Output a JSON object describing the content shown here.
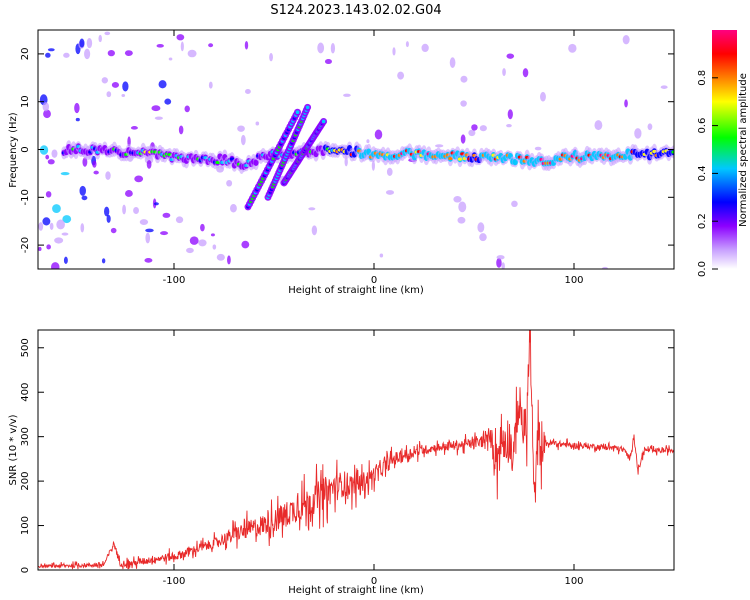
{
  "title": "S124.2023.143.02.02.G04",
  "chart_data": [
    {
      "type": "heatmap",
      "xlabel": "Height of straight line (km)",
      "ylabel": "Frequency (Hz)",
      "xlim": [
        -168,
        150
      ],
      "ylim": [
        -25,
        25
      ],
      "xticks": [
        -100,
        0,
        100
      ],
      "xtick_labels": [
        "-100",
        "0",
        "100"
      ],
      "yticks": [
        -20,
        -10,
        0,
        10,
        20
      ],
      "ytick_labels": [
        "-20",
        "-10",
        "0",
        "10",
        "20"
      ],
      "colorbar": {
        "label": "Normalized spectral amplitude",
        "range": [
          0,
          1
        ],
        "ticks": [
          0.0,
          0.2,
          0.4,
          0.6,
          0.8
        ],
        "tick_labels": [
          "0.0",
          "0.2",
          "0.4",
          "0.6",
          "0.8"
        ],
        "colors": [
          "#ffffff",
          "#c8a0ff",
          "#8c00ff",
          "#0000ff",
          "#00c8ff",
          "#00ff00",
          "#ffff00",
          "#ff8000",
          "#ff0000",
          "#ff0080"
        ]
      },
      "track": [
        {
          "x": -150,
          "f": 0.0,
          "a": 0.35
        },
        {
          "x": -130,
          "f": -0.5,
          "a": 0.4
        },
        {
          "x": -110,
          "f": -1.0,
          "a": 0.45
        },
        {
          "x": -95,
          "f": -2.0,
          "a": 0.4
        },
        {
          "x": -80,
          "f": -2.0,
          "a": 0.4
        },
        {
          "x": -65,
          "f": -3.0,
          "a": 0.35
        },
        {
          "x": -50,
          "f": -1.0,
          "a": 0.35
        },
        {
          "x": -35,
          "f": -0.5,
          "a": 0.4
        },
        {
          "x": -20,
          "f": 0.0,
          "a": 0.55
        },
        {
          "x": -10,
          "f": -0.5,
          "a": 0.7
        },
        {
          "x": 0,
          "f": -1.0,
          "a": 0.75
        },
        {
          "x": 15,
          "f": -1.0,
          "a": 0.8
        },
        {
          "x": 30,
          "f": -1.0,
          "a": 0.75
        },
        {
          "x": 50,
          "f": -1.5,
          "a": 0.7
        },
        {
          "x": 70,
          "f": -2.0,
          "a": 0.75
        },
        {
          "x": 85,
          "f": -2.5,
          "a": 0.8
        },
        {
          "x": 100,
          "f": -1.5,
          "a": 0.75
        },
        {
          "x": 115,
          "f": -1.5,
          "a": 0.8
        },
        {
          "x": 130,
          "f": -1.0,
          "a": 0.7
        },
        {
          "x": 150,
          "f": -1.0,
          "a": 0.6
        }
      ],
      "oblique_streaks": [
        {
          "x_start": -63,
          "f_start": -12,
          "x_end": -38,
          "f_end": 8
        },
        {
          "x_start": -53,
          "f_start": -10,
          "x_end": -33,
          "f_end": 9
        },
        {
          "x_start": -45,
          "f_start": -7,
          "x_end": -25,
          "f_end": 6
        }
      ]
    },
    {
      "type": "line",
      "xlabel": "Height of straight line (km)",
      "ylabel": "SNR (10 * v/v)",
      "xlim": [
        -168,
        150
      ],
      "ylim": [
        0,
        540
      ],
      "xticks": [
        -100,
        0,
        100
      ],
      "xtick_labels": [
        "-100",
        "0",
        "100"
      ],
      "yticks": [
        0,
        100,
        200,
        300,
        400,
        500
      ],
      "ytick_labels": [
        "0",
        "100",
        "200",
        "300",
        "400",
        "500"
      ],
      "color": "#e82a2a",
      "series": [
        {
          "x": [
            -168,
            -150,
            -135,
            -130,
            -127,
            -120,
            -110,
            -100,
            -90,
            -80,
            -70,
            -60,
            -50,
            -40,
            -30,
            -20,
            -15,
            -10,
            -5,
            0,
            5,
            10,
            20,
            30,
            40,
            50,
            55,
            58,
            60,
            62,
            64,
            66,
            68,
            70,
            72,
            74,
            76,
            78,
            80,
            82,
            85,
            90,
            100,
            110,
            120,
            125,
            128,
            130,
            132,
            135,
            140,
            150
          ],
          "y": [
            8,
            10,
            12,
            60,
            15,
            15,
            25,
            30,
            45,
            60,
            80,
            95,
            110,
            135,
            160,
            185,
            195,
            190,
            200,
            215,
            230,
            250,
            265,
            275,
            280,
            285,
            290,
            300,
            280,
            260,
            290,
            300,
            290,
            250,
            380,
            340,
            300,
            540,
            150,
            290,
            285,
            285,
            280,
            278,
            275,
            270,
            250,
            305,
            220,
            270,
            268,
            270
          ]
        }
      ],
      "noise_amplitude": [
        {
          "x": -168,
          "amp": 6
        },
        {
          "x": -80,
          "amp": 25
        },
        {
          "x": -50,
          "amp": 60
        },
        {
          "x": -25,
          "amp": 80
        },
        {
          "x": 0,
          "amp": 40
        },
        {
          "x": 30,
          "amp": 20
        },
        {
          "x": 58,
          "amp": 30
        },
        {
          "x": 60,
          "amp": 120
        },
        {
          "x": 84,
          "amp": 120
        },
        {
          "x": 86,
          "amp": 15
        },
        {
          "x": 150,
          "amp": 12
        }
      ]
    }
  ]
}
